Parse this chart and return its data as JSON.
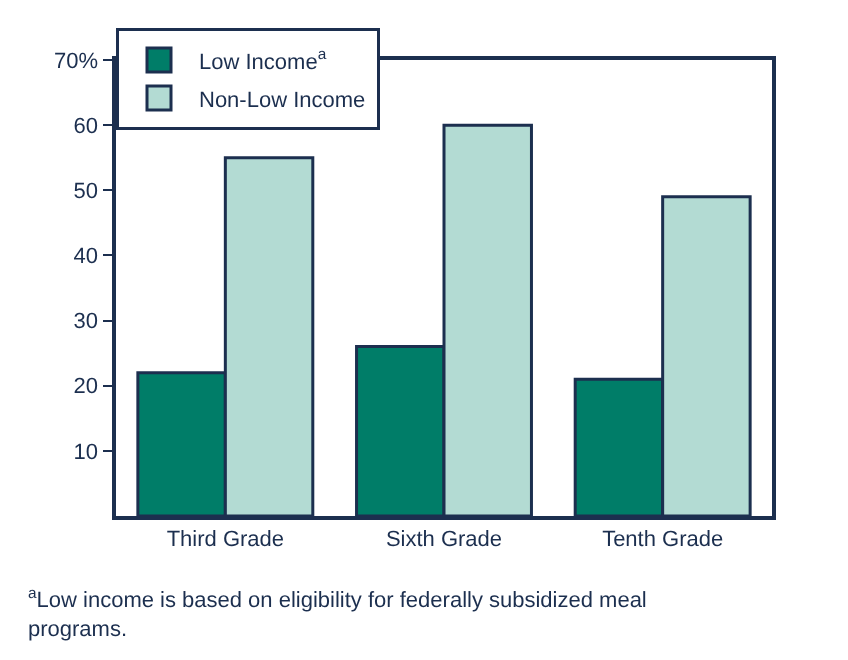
{
  "chart_data": {
    "type": "bar",
    "categories": [
      "Third Grade",
      "Sixth Grade",
      "Tenth Grade"
    ],
    "series": [
      {
        "name": "Low Income$^{a}$",
        "color": "#007d68",
        "values": [
          22,
          26,
          21
        ]
      },
      {
        "name": "Non-Low Income",
        "color": "#b3dbd3",
        "values": [
          55,
          60,
          49
        ]
      }
    ],
    "ylim": [
      0,
      70
    ],
    "yticks": [
      10,
      20,
      30,
      40,
      50,
      60,
      {
        "value": 70,
        "label": "70%"
      }
    ],
    "legend": "top left",
    "annotations": [
      "$^{a}$Low income is based on eligibility for federally subsidized meal programs."
    ]
  }
}
